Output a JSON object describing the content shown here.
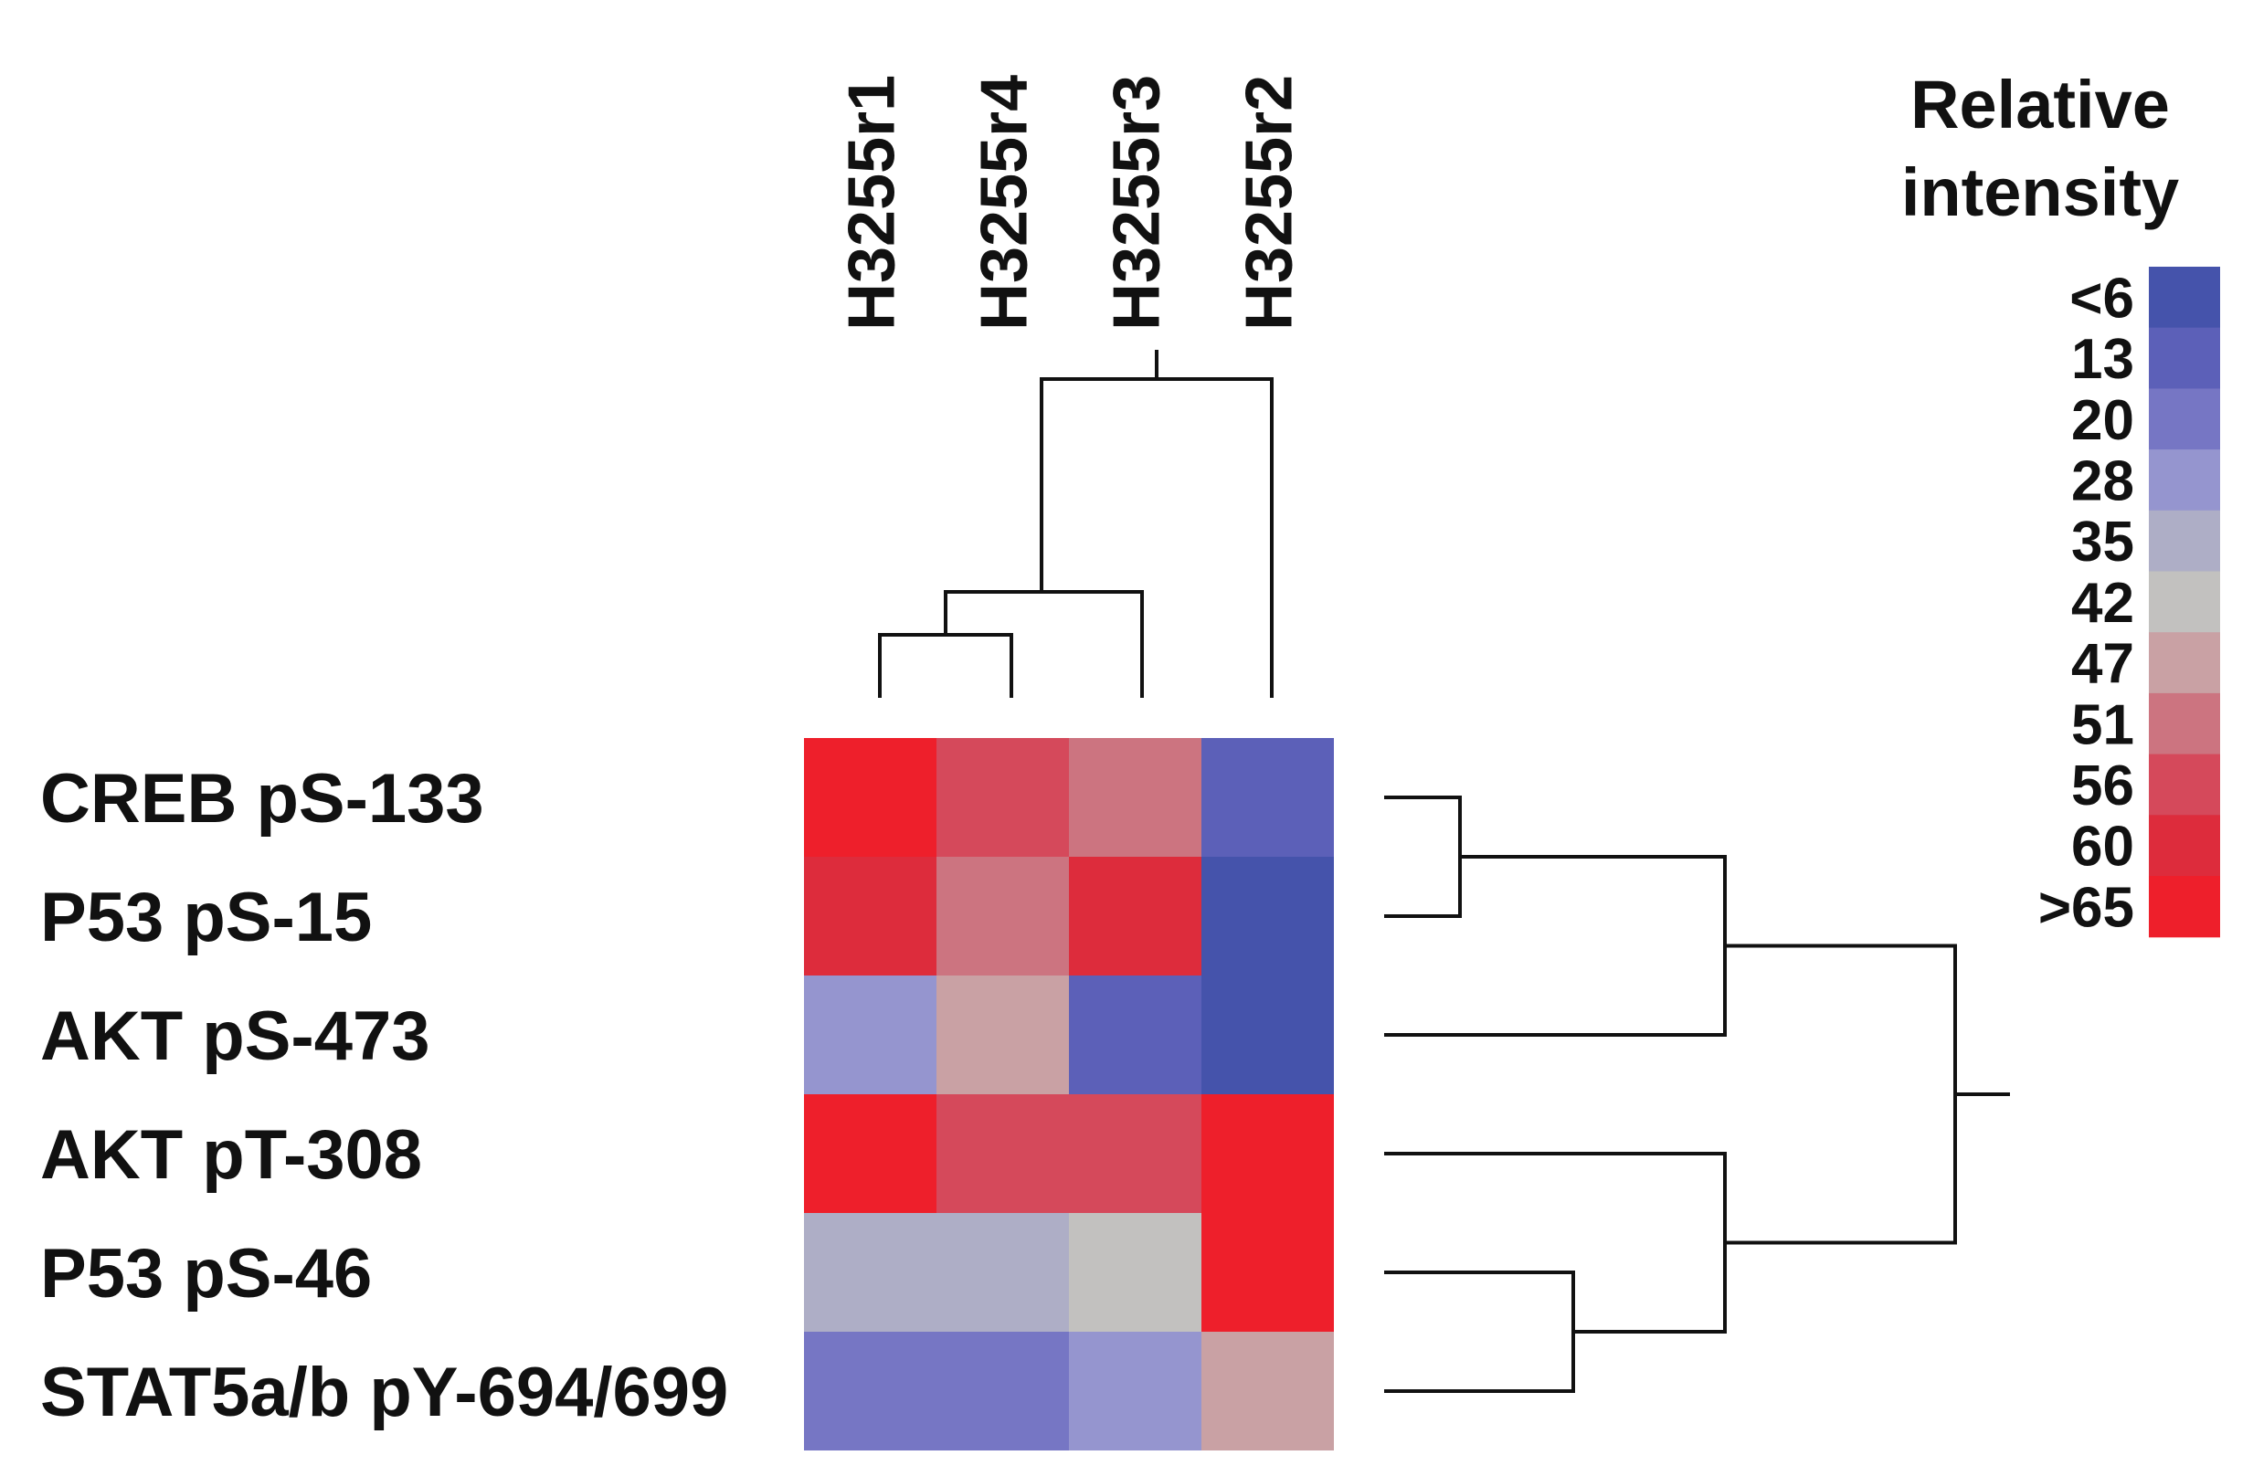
{
  "chart_data": {
    "type": "heatmap",
    "title": "",
    "xlabel": "",
    "ylabel": "",
    "columns": [
      "H3255r1",
      "H3255r4",
      "H3255r3",
      "H3255r2"
    ],
    "rows": [
      "CREB pS-133",
      "P53 pS-15",
      "AKT pS-473",
      "AKT pT-308",
      "P53 pS-46",
      "STAT5a/b pY-694/699"
    ],
    "values": [
      [
        66,
        57,
        51,
        13
      ],
      [
        60,
        51,
        60,
        6
      ],
      [
        28,
        47,
        13,
        6
      ],
      [
        66,
        56,
        57,
        66
      ],
      [
        37,
        37,
        42,
        66
      ],
      [
        17,
        22,
        26,
        48
      ]
    ],
    "legend": {
      "title_line1": "Relative",
      "title_line2": "intensity",
      "placement": "top-right",
      "ticks": [
        "<6",
        "13",
        "20",
        "28",
        "35",
        "42",
        "47",
        "51",
        "56",
        "60",
        ">65"
      ],
      "colors": [
        "#4553ab",
        "#5c60b8",
        "#7676c4",
        "#9595cf",
        "#aeaec6",
        "#c2c1bf",
        "#c9a1a4",
        "#cc7480",
        "#d5495b",
        "#dd2c3c",
        "#ee1f2b"
      ]
    },
    "column_dendrogram": "((H3255r1,H3255r4),H3255r3),H3255r2",
    "row_dendrogram": "(((CREB pS-133,P53 pS-15),AKT pS-473),(AKT pT-308,(P53 pS-46,STAT5a/b pY-694/699)))"
  }
}
